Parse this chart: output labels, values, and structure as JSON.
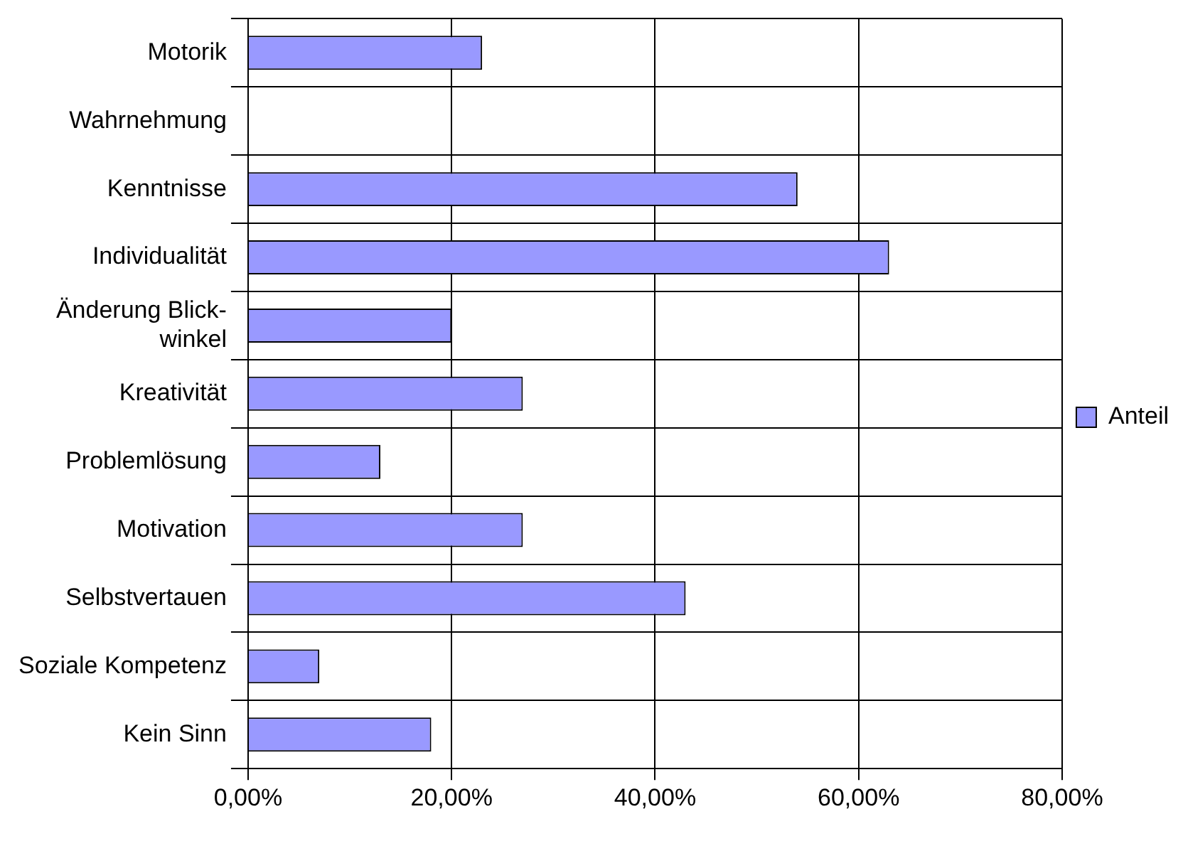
{
  "chart_data": {
    "type": "bar",
    "orientation": "horizontal",
    "categories": [
      "Motorik",
      "Wahrnehmung",
      "Kenntnisse",
      "Individualität",
      "Änderung Blick-winkel",
      "Kreativität",
      "Problemlösung",
      "Motivation",
      "Selbstvertauen",
      "Soziale Kompetenz",
      "Kein Sinn"
    ],
    "series": [
      {
        "name": "Anteil",
        "color": "#9999ff",
        "values": [
          23,
          0,
          54,
          63,
          20,
          27,
          13,
          27,
          43,
          7,
          18
        ]
      }
    ],
    "xlim": [
      0,
      80
    ],
    "xticks": [
      {
        "value": 0,
        "label": "0,00%"
      },
      {
        "value": 20,
        "label": "20,00%"
      },
      {
        "value": 40,
        "label": "40,00%"
      },
      {
        "value": 60,
        "label": "60,00%"
      },
      {
        "value": 80,
        "label": "80,00%"
      }
    ],
    "grid": true,
    "legend": "right"
  }
}
